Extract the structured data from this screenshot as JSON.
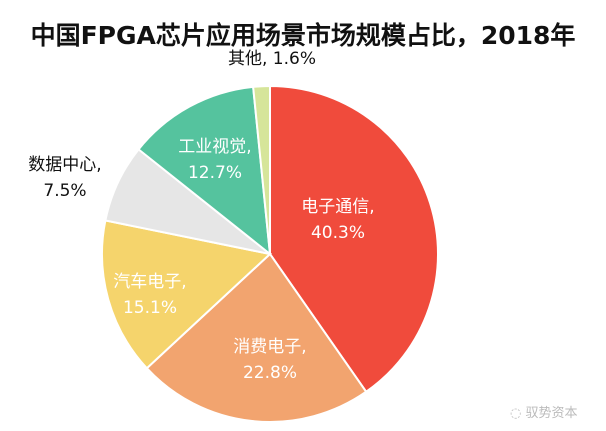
{
  "chart_data": {
    "type": "pie",
    "title": "中国FPGA芯片应用场景市场规模占比，2018年",
    "start": "12 o'clock, clockwise",
    "slices": [
      {
        "label": "电子通信",
        "value": 40.3,
        "text": "40.3%",
        "color": "#f04b3c",
        "inside": true
      },
      {
        "label": "消费电子",
        "value": 22.8,
        "text": "22.8%",
        "color": "#f2a46f",
        "inside": true
      },
      {
        "label": "汽车电子",
        "value": 15.1,
        "text": "15.1%",
        "color": "#f5d46c",
        "inside": true
      },
      {
        "label": "数据中心",
        "value": 7.5,
        "text": "7.5%",
        "color": "#e6e6e6",
        "inside": false
      },
      {
        "label": "工业视觉",
        "value": 12.7,
        "text": "12.7%",
        "color": "#55c39e",
        "inside": true
      },
      {
        "label": "其他",
        "value": 1.6,
        "text": "1.6%",
        "color": "#d6e59a",
        "inside": false
      }
    ]
  },
  "watermark": "驭势资本"
}
